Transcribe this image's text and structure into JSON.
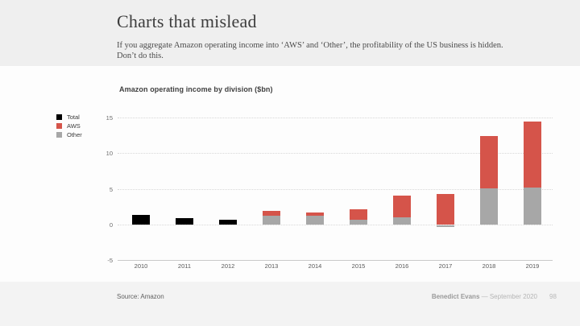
{
  "slide": {
    "title": "Charts that mislead",
    "subtitle_line1": "If you aggregate Amazon operating income into ‘AWS’ and ‘Other’, the profitability of the US business is hidden.",
    "subtitle_line2": "Don’t do this."
  },
  "chart": {
    "title": "Amazon operating income by division ($bn)",
    "legend": [
      {
        "label": "Total",
        "color": "#000000"
      },
      {
        "label": "AWS",
        "color": "#d5544a"
      },
      {
        "label": "Other",
        "color": "#a7a7a7"
      }
    ]
  },
  "chart_data": {
    "type": "bar",
    "stacked": true,
    "title": "Amazon operating income by division ($bn)",
    "categories": [
      "2010",
      "2011",
      "2012",
      "2013",
      "2014",
      "2015",
      "2016",
      "2017",
      "2018",
      "2019"
    ],
    "series": [
      {
        "name": "Total",
        "color": "#000000",
        "values": [
          1.4,
          0.9,
          0.7,
          null,
          null,
          null,
          null,
          null,
          null,
          null
        ]
      },
      {
        "name": "Other",
        "color": "#a7a7a7",
        "values": [
          null,
          null,
          null,
          1.2,
          1.2,
          0.7,
          1.0,
          -0.2,
          5.1,
          5.3
        ]
      },
      {
        "name": "AWS",
        "color": "#d5544a",
        "values": [
          null,
          null,
          null,
          0.7,
          0.5,
          1.5,
          3.1,
          4.3,
          7.3,
          9.2
        ]
      }
    ],
    "ylabel": "",
    "xlabel": "",
    "ylim": [
      -5,
      15
    ],
    "yticks": [
      -5,
      0,
      5,
      10,
      15
    ],
    "grid": "horizontal-dotted, solid baseline at -5",
    "legend_position": "left-top"
  },
  "footer": {
    "source": "Source: Amazon",
    "author": "Benedict Evans",
    "date_suffix": " — September 2020",
    "page": "98"
  }
}
